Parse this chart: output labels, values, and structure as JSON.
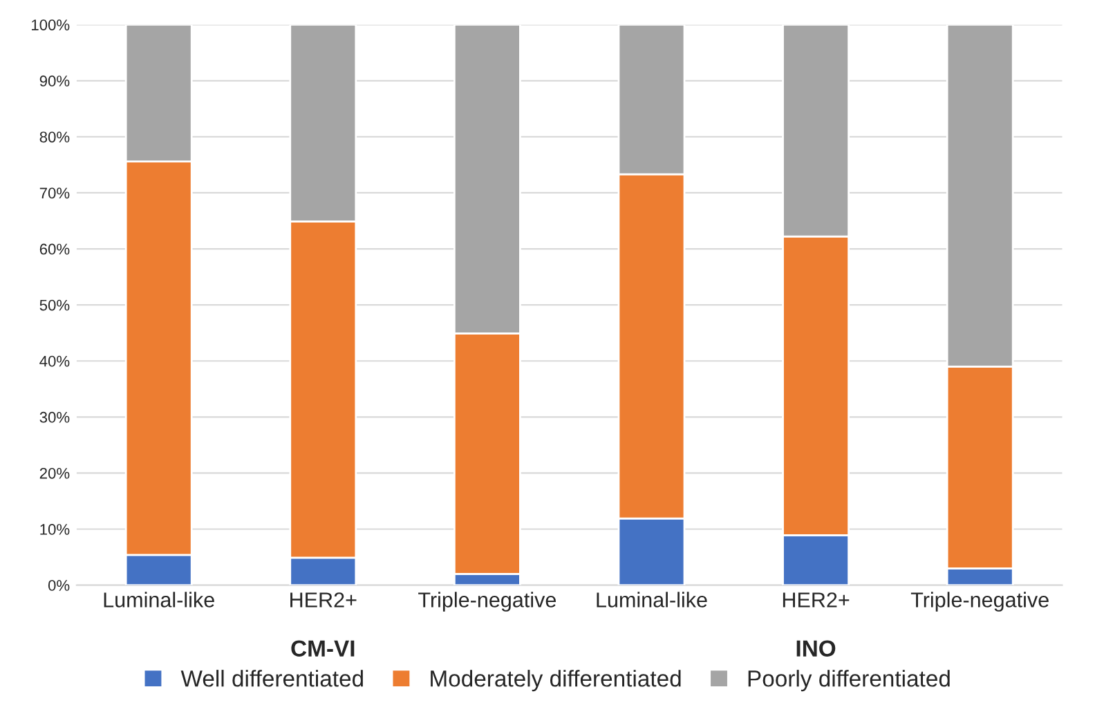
{
  "chart_data": {
    "type": "bar",
    "stacked": true,
    "categories": [
      "Luminal-like",
      "HER2+",
      "Triple-negative",
      "Luminal-like",
      "HER2+",
      "Triple-negative"
    ],
    "series": [
      {
        "name": "Well differentiated",
        "color": "#4472c4",
        "values": [
          5.4,
          4.9,
          2.0,
          11.9,
          8.9,
          3.0
        ]
      },
      {
        "name": "Moderately differentiated",
        "color": "#ed7d31",
        "values": [
          70.2,
          60.0,
          42.9,
          61.4,
          53.3,
          36.0
        ]
      },
      {
        "name": "Poorly differentiated",
        "color": "#a5a5a5",
        "values": [
          24.4,
          35.1,
          55.1,
          26.7,
          37.8,
          61.0
        ]
      }
    ],
    "ylim": [
      0,
      100
    ],
    "yticks": [
      {
        "value": 0,
        "label": "0%"
      },
      {
        "value": 10,
        "label": "10%"
      },
      {
        "value": 20,
        "label": "20%"
      },
      {
        "value": 30,
        "label": "30%"
      },
      {
        "value": 40,
        "label": "40%"
      },
      {
        "value": 50,
        "label": "50%"
      },
      {
        "value": 60,
        "label": "60%"
      },
      {
        "value": 70,
        "label": "70%"
      },
      {
        "value": 80,
        "label": "80%"
      },
      {
        "value": 90,
        "label": "90%"
      },
      {
        "value": 100,
        "label": "100%"
      }
    ],
    "annotations": [
      "CM-VI",
      "INO"
    ],
    "grid": "y",
    "legend": "bottom"
  }
}
